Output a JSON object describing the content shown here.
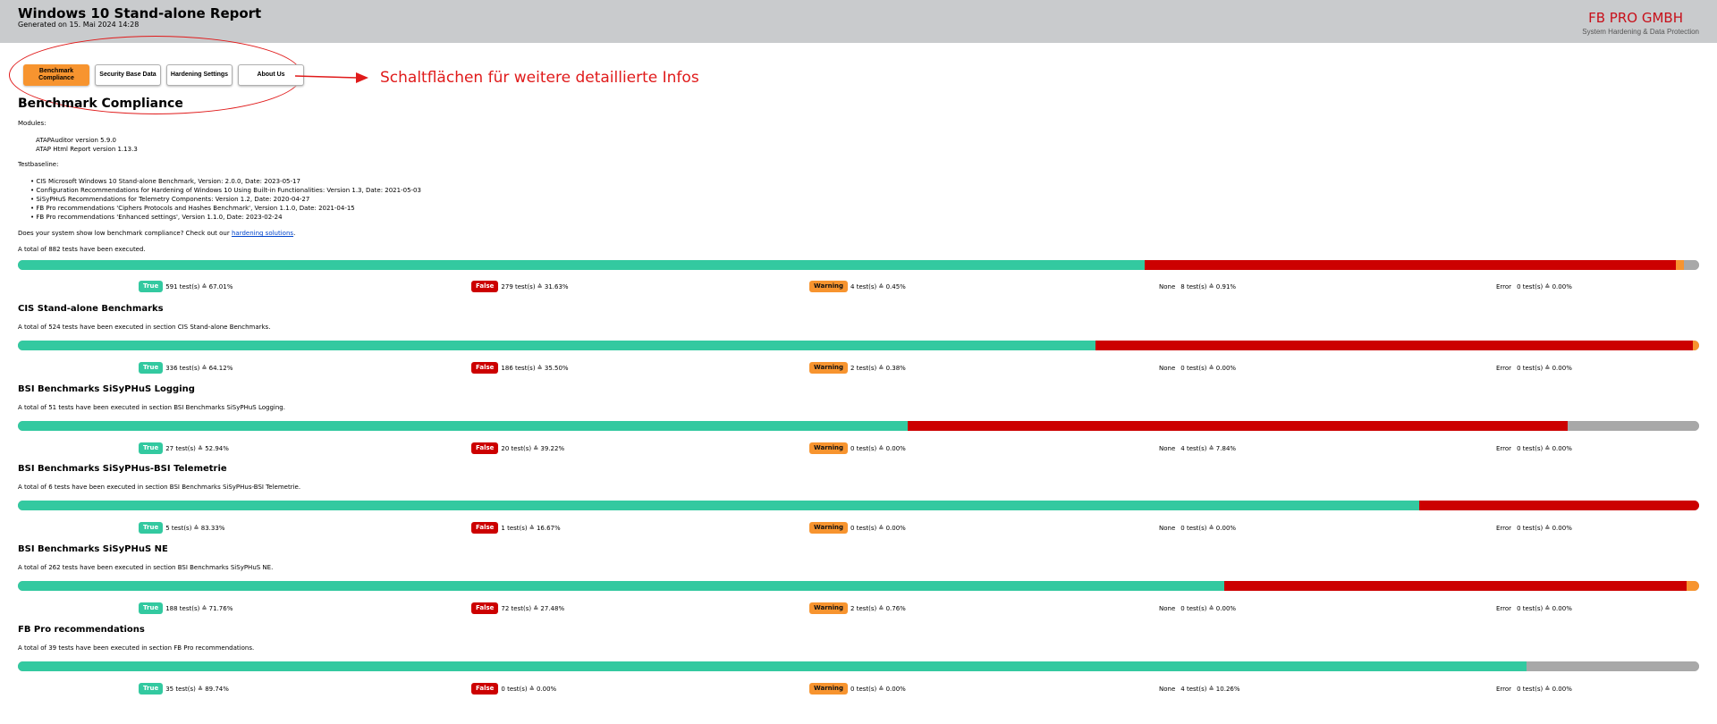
{
  "header": {
    "title": "Windows 10 Stand-alone Report",
    "generated": "Generated on 15. Mai 2024 14:28",
    "brand": "FB PRO GMBH",
    "tagline": "System Hardening & Data Protection"
  },
  "nav": [
    {
      "label": "Benchmark Compliance",
      "active": true
    },
    {
      "label": "Security Base Data",
      "active": false
    },
    {
      "label": "Hardening Settings",
      "active": false
    },
    {
      "label": "About Us",
      "active": false
    }
  ],
  "annotation": {
    "text": "Schaltflächen für weitere detaillierte Infos",
    "color": "#e01a1a"
  },
  "page": {
    "title": "Benchmark Compliance",
    "modules_label": "Modules:",
    "modules": [
      "ATAPAuditor version 5.9.0",
      "ATAP Html Report version 1.13.3"
    ],
    "testbaseline_label": "Testbaseline:",
    "baselines": [
      "CIS Microsoft Windows 10 Stand-alone Benchmark, Version: 2.0.0, Date: 2023-05-17",
      "Configuration Recommendations for Hardening of Windows 10 Using Built-in Functionalities: Version 1.3, Date: 2021-05-03",
      "SiSyPHuS Recommendations for Telemetry Components: Version 1.2, Date: 2020-04-27",
      "FB Pro recommendations 'Ciphers Protocols and Hashes Benchmark', Version 1.1.0, Date: 2021-04-15",
      "FB Pro recommendations 'Enhanced settings', Version 1.1.0, Date: 2023-02-24"
    ],
    "hardening_prefix": "Does your system show low benchmark compliance? Check out our",
    "hardening_link": "hardening solutions",
    "hardening_suffix": "."
  },
  "colors": {
    "true": "#33c9a0",
    "false": "#cc0000",
    "warning": "#f7942f",
    "none": "#a8a8a8",
    "accent": "#c8101a"
  },
  "labels": {
    "true": "True",
    "false": "False",
    "warning": "Warning",
    "none": "None",
    "error": "Error"
  },
  "sections": [
    {
      "title": "",
      "text": "A total of 882 tests have been executed.",
      "pct": {
        "true": 67.01,
        "false": 31.63,
        "warning": 0.45,
        "none": 0.91
      },
      "stats": {
        "true": "591 test(s) ≙ 67.01%",
        "false": "279 test(s) ≙ 31.63%",
        "warning": "4 test(s) ≙ 0.45%",
        "none": "8 test(s) ≙ 0.91%",
        "error": "0 test(s) ≙ 0.00%"
      }
    },
    {
      "title": "CIS Stand-alone Benchmarks",
      "text": "A total of 524 tests have been executed in section CIS Stand-alone Benchmarks.",
      "pct": {
        "true": 64.12,
        "false": 35.5,
        "warning": 0.38,
        "none": 0
      },
      "stats": {
        "true": "336 test(s) ≙ 64.12%",
        "false": "186 test(s) ≙ 35.50%",
        "warning": "2 test(s) ≙ 0.38%",
        "none": "0 test(s) ≙ 0.00%",
        "error": "0 test(s) ≙ 0.00%"
      }
    },
    {
      "title": "BSI Benchmarks SiSyPHuS Logging",
      "text": "A total of 51 tests have been executed in section BSI Benchmarks SiSyPHuS Logging.",
      "pct": {
        "true": 52.94,
        "false": 39.22,
        "warning": 0,
        "none": 7.84
      },
      "stats": {
        "true": "27 test(s) ≙ 52.94%",
        "false": "20 test(s) ≙ 39.22%",
        "warning": "0 test(s) ≙ 0.00%",
        "none": "4 test(s) ≙ 7.84%",
        "error": "0 test(s) ≙ 0.00%"
      }
    },
    {
      "title": "BSI Benchmarks SiSyPHus-BSI Telemetrie",
      "text": "A total of 6 tests have been executed in section BSI Benchmarks SiSyPHus-BSI Telemetrie.",
      "pct": {
        "true": 83.33,
        "false": 16.67,
        "warning": 0,
        "none": 0
      },
      "stats": {
        "true": "5 test(s) ≙ 83.33%",
        "false": "1 test(s) ≙ 16.67%",
        "warning": "0 test(s) ≙ 0.00%",
        "none": "0 test(s) ≙ 0.00%",
        "error": "0 test(s) ≙ 0.00%"
      }
    },
    {
      "title": "BSI Benchmarks SiSyPHuS NE",
      "text": "A total of 262 tests have been executed in section BSI Benchmarks SiSyPHuS NE.",
      "pct": {
        "true": 71.76,
        "false": 27.48,
        "warning": 0.76,
        "none": 0
      },
      "stats": {
        "true": "188 test(s) ≙ 71.76%",
        "false": "72 test(s) ≙ 27.48%",
        "warning": "2 test(s) ≙ 0.76%",
        "none": "0 test(s) ≙ 0.00%",
        "error": "0 test(s) ≙ 0.00%"
      }
    },
    {
      "title": "FB Pro recommendations",
      "text": "A total of 39 tests have been executed in section FB Pro recommendations.",
      "pct": {
        "true": 89.74,
        "false": 0,
        "warning": 0,
        "none": 10.26
      },
      "stats": {
        "true": "35 test(s) ≙ 89.74%",
        "false": "0 test(s) ≙ 0.00%",
        "warning": "0 test(s) ≙ 0.00%",
        "none": "4 test(s) ≙ 10.26%",
        "error": "0 test(s) ≙ 0.00%"
      }
    }
  ]
}
